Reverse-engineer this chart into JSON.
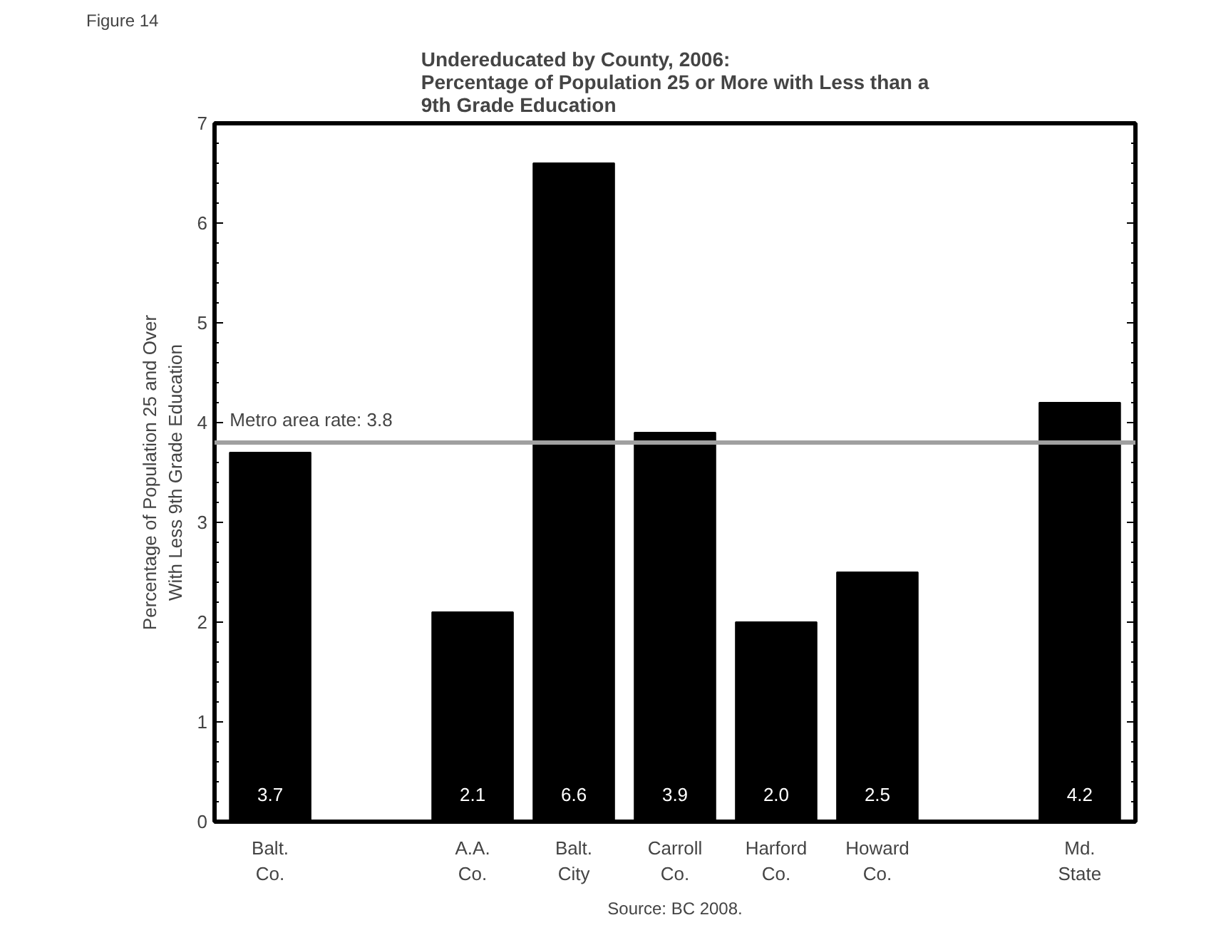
{
  "chart_data": {
    "type": "bar",
    "title": "Undereducated by County, 2006:\nPercentage of Population 25 or More with Less than a\n9th Grade Education",
    "ylabel": "Percentage of Population 25 and Over\nWith Less 9th Grade Education",
    "categories": [
      "Balt.\nCo.",
      null,
      "A.A.\nCo.",
      "Balt.\nCity",
      "Carroll\nCo.",
      "Harford\nCo.",
      "Howard\nCo.",
      null,
      "Md.\nState"
    ],
    "values": [
      3.7,
      null,
      2.1,
      6.6,
      3.9,
      2.0,
      2.5,
      null,
      4.2
    ],
    "color": "#000000",
    "data_labels": true,
    "value_labels": [
      "3.7",
      null,
      "2.1",
      "6.6",
      "3.9",
      "2.0",
      "2.5",
      null,
      "4.2"
    ],
    "ylim": [
      0,
      7
    ],
    "yticks": [
      0,
      1,
      2,
      3,
      4,
      5,
      6,
      7
    ],
    "grid": false,
    "ref_lines": [
      {
        "axis": "y",
        "value": 3.8,
        "label": "Metro area rate:  3.8",
        "color": "#a0a0a0"
      }
    ],
    "annotations": [
      "Figure 14",
      "Source: BC 2008."
    ]
  }
}
